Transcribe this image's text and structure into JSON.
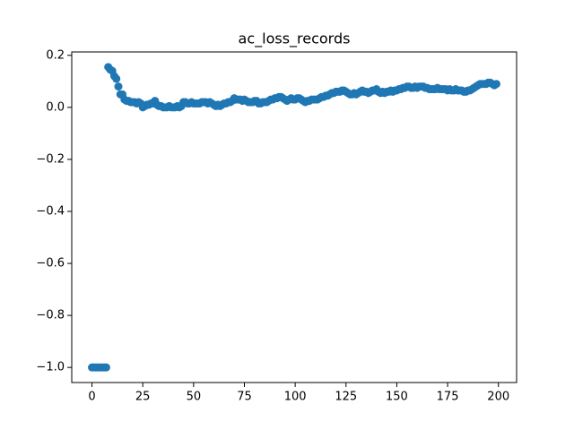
{
  "chart_data": {
    "type": "scatter",
    "title": "ac_loss_records",
    "color": "#1f77b4",
    "x": [
      0,
      1,
      2,
      3,
      4,
      5,
      6,
      7,
      8,
      9,
      10,
      11,
      12,
      13,
      14,
      15,
      16,
      17,
      18,
      19,
      20,
      21,
      22,
      23,
      24,
      25,
      26,
      27,
      28,
      29,
      30,
      31,
      32,
      33,
      34,
      35,
      36,
      37,
      38,
      39,
      40,
      41,
      42,
      43,
      44,
      45,
      46,
      47,
      48,
      49,
      50,
      51,
      52,
      53,
      54,
      55,
      56,
      57,
      58,
      59,
      60,
      61,
      62,
      63,
      64,
      65,
      66,
      67,
      68,
      69,
      70,
      71,
      72,
      73,
      74,
      75,
      76,
      77,
      78,
      79,
      80,
      81,
      82,
      83,
      84,
      85,
      86,
      87,
      88,
      89,
      90,
      91,
      92,
      93,
      94,
      95,
      96,
      97,
      98,
      99,
      100,
      101,
      102,
      103,
      104,
      105,
      106,
      107,
      108,
      109,
      110,
      111,
      112,
      113,
      114,
      115,
      116,
      117,
      118,
      119,
      120,
      121,
      122,
      123,
      124,
      125,
      126,
      127,
      128,
      129,
      130,
      131,
      132,
      133,
      134,
      135,
      136,
      137,
      138,
      139,
      140,
      141,
      142,
      143,
      144,
      145,
      146,
      147,
      148,
      149,
      150,
      151,
      152,
      153,
      154,
      155,
      156,
      157,
      158,
      159,
      160,
      161,
      162,
      163,
      164,
      165,
      166,
      167,
      168,
      169,
      170,
      171,
      172,
      173,
      174,
      175,
      176,
      177,
      178,
      179,
      180,
      181,
      182,
      183,
      184,
      185,
      186,
      187,
      188,
      189,
      190,
      191,
      192,
      193,
      194,
      195,
      196,
      197,
      198,
      199
    ],
    "values": [
      -1,
      -1,
      -1,
      -1,
      -1,
      -1,
      -1,
      -1,
      0.155,
      0.145,
      0.14,
      0.12,
      0.11,
      0.08,
      0.05,
      0.05,
      0.03,
      0.025,
      0.025,
      0.02,
      0.02,
      0.02,
      0.015,
      0.02,
      0.015,
      0.0,
      0.005,
      0.01,
      0.01,
      0.015,
      0.015,
      0.025,
      0.01,
      0.005,
      0.005,
      0.0,
      0.0,
      0.0,
      0.005,
      0.0,
      0.0,
      0.0,
      0.005,
      0.0,
      0.005,
      0.02,
      0.02,
      0.015,
      0.015,
      0.02,
      0.015,
      0.015,
      0.015,
      0.015,
      0.02,
      0.02,
      0.02,
      0.015,
      0.02,
      0.015,
      0.01,
      0.005,
      0.01,
      0.005,
      0.01,
      0.015,
      0.015,
      0.02,
      0.02,
      0.025,
      0.035,
      0.03,
      0.03,
      0.03,
      0.025,
      0.03,
      0.025,
      0.02,
      0.02,
      0.02,
      0.025,
      0.025,
      0.015,
      0.015,
      0.02,
      0.02,
      0.02,
      0.025,
      0.03,
      0.03,
      0.035,
      0.035,
      0.04,
      0.04,
      0.035,
      0.03,
      0.025,
      0.03,
      0.035,
      0.03,
      0.03,
      0.035,
      0.035,
      0.03,
      0.025,
      0.02,
      0.025,
      0.025,
      0.03,
      0.03,
      0.03,
      0.03,
      0.035,
      0.04,
      0.04,
      0.045,
      0.045,
      0.05,
      0.055,
      0.055,
      0.06,
      0.06,
      0.06,
      0.065,
      0.065,
      0.06,
      0.055,
      0.05,
      0.05,
      0.055,
      0.05,
      0.055,
      0.06,
      0.065,
      0.06,
      0.06,
      0.055,
      0.06,
      0.065,
      0.065,
      0.07,
      0.06,
      0.055,
      0.06,
      0.055,
      0.06,
      0.06,
      0.065,
      0.06,
      0.065,
      0.065,
      0.07,
      0.07,
      0.075,
      0.075,
      0.08,
      0.08,
      0.075,
      0.075,
      0.08,
      0.075,
      0.08,
      0.08,
      0.08,
      0.075,
      0.075,
      0.07,
      0.07,
      0.07,
      0.07,
      0.075,
      0.07,
      0.07,
      0.07,
      0.07,
      0.065,
      0.07,
      0.065,
      0.065,
      0.07,
      0.065,
      0.065,
      0.065,
      0.06,
      0.06,
      0.065,
      0.065,
      0.07,
      0.075,
      0.08,
      0.085,
      0.09,
      0.09,
      0.09,
      0.09,
      0.095,
      0.095,
      0.09,
      0.085,
      0.09
    ],
    "xlim": [
      -9.95,
      208.95
    ],
    "xticks": [
      0,
      25,
      50,
      75,
      100,
      125,
      150,
      175,
      200
    ],
    "ylim": [
      -1.058,
      0.213
    ],
    "yticks": [
      {
        "value": -1.0,
        "label": "−1.0"
      },
      {
        "value": -0.8,
        "label": "−0.8"
      },
      {
        "value": -0.6,
        "label": "−0.6"
      },
      {
        "value": -0.4,
        "label": "−0.4"
      },
      {
        "value": -0.2,
        "label": "−0.2"
      },
      {
        "value": 0.0,
        "label": "0.0"
      },
      0.2
    ],
    "grid": false
  }
}
